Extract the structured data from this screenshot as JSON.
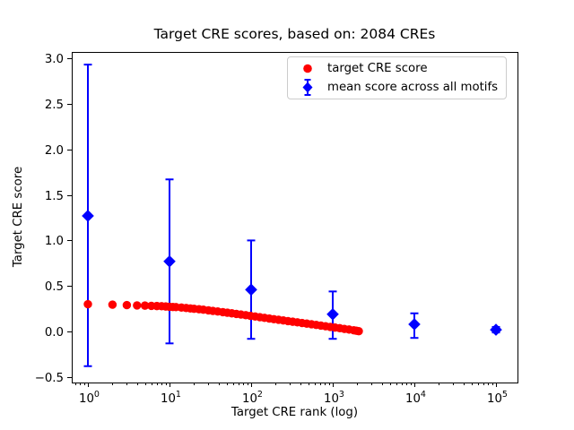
{
  "figure": {
    "title": "Target CRE scores, based on: 2084 CREs"
  },
  "chart_data": {
    "type": "scatter",
    "title": "Target CRE scores, based on: 2084 CREs",
    "xlabel": "Target CRE rank (log)",
    "ylabel": "Target CRE score",
    "x_scale": "log",
    "xlim": [
      0.63,
      186000
    ],
    "ylim": [
      -0.56,
      3.07
    ],
    "x_tick_exponents": [
      0,
      1,
      2,
      3,
      4,
      5
    ],
    "y_tick_values": [
      -0.5,
      0.0,
      0.5,
      1.0,
      1.5,
      2.0,
      2.5,
      3.0
    ],
    "y_tick_labels": [
      "−0.5",
      "0.0",
      "0.5",
      "1.0",
      "1.5",
      "2.0",
      "2.5",
      "3.0"
    ],
    "grid": false,
    "background": "#ffffff",
    "axis_color": "#000000",
    "legend": {
      "position": "upper right",
      "border_color": "#cccccc"
    },
    "series": [
      {
        "name": "target CRE score",
        "marker": "circle",
        "color": "#ff0000",
        "points": [
          [
            1,
            0.3
          ],
          [
            2,
            0.295
          ],
          [
            3,
            0.29
          ],
          [
            4,
            0.287
          ],
          [
            5,
            0.285
          ],
          [
            6,
            0.282
          ],
          [
            7,
            0.28
          ],
          [
            8,
            0.278
          ],
          [
            9,
            0.275
          ],
          [
            10,
            0.272
          ],
          [
            11,
            0.27
          ],
          [
            12,
            0.268
          ],
          [
            14,
            0.263
          ],
          [
            16,
            0.258
          ],
          [
            18,
            0.254
          ],
          [
            20,
            0.25
          ],
          [
            23,
            0.245
          ],
          [
            26,
            0.24
          ],
          [
            30,
            0.233
          ],
          [
            34,
            0.227
          ],
          [
            39,
            0.22
          ],
          [
            45,
            0.213
          ],
          [
            51,
            0.207
          ],
          [
            58,
            0.2
          ],
          [
            66,
            0.193
          ],
          [
            75,
            0.187
          ],
          [
            86,
            0.18
          ],
          [
            98,
            0.172
          ],
          [
            112,
            0.165
          ],
          [
            128,
            0.158
          ],
          [
            146,
            0.15
          ],
          [
            167,
            0.143
          ],
          [
            190,
            0.136
          ],
          [
            217,
            0.129
          ],
          [
            248,
            0.122
          ],
          [
            283,
            0.115
          ],
          [
            323,
            0.108
          ],
          [
            369,
            0.101
          ],
          [
            421,
            0.094
          ],
          [
            481,
            0.087
          ],
          [
            549,
            0.08
          ],
          [
            627,
            0.073
          ],
          [
            716,
            0.066
          ],
          [
            817,
            0.058
          ],
          [
            933,
            0.051
          ],
          [
            1065,
            0.044
          ],
          [
            1216,
            0.037
          ],
          [
            1388,
            0.029
          ],
          [
            1585,
            0.022
          ],
          [
            1810,
            0.014
          ],
          [
            1950,
            0.009
          ],
          [
            2084,
            0.004
          ]
        ]
      },
      {
        "name": "mean score across all motifs",
        "marker": "diamond",
        "color": "#0000ff",
        "points_with_error": [
          [
            1,
            1.27,
            -0.38,
            2.93
          ],
          [
            10,
            0.77,
            -0.13,
            1.67
          ],
          [
            100,
            0.46,
            -0.08,
            1.0
          ],
          [
            1000,
            0.19,
            -0.08,
            0.44
          ],
          [
            10000,
            0.08,
            -0.07,
            0.2
          ],
          [
            100000,
            0.02,
            -0.01,
            0.05
          ]
        ]
      }
    ]
  }
}
